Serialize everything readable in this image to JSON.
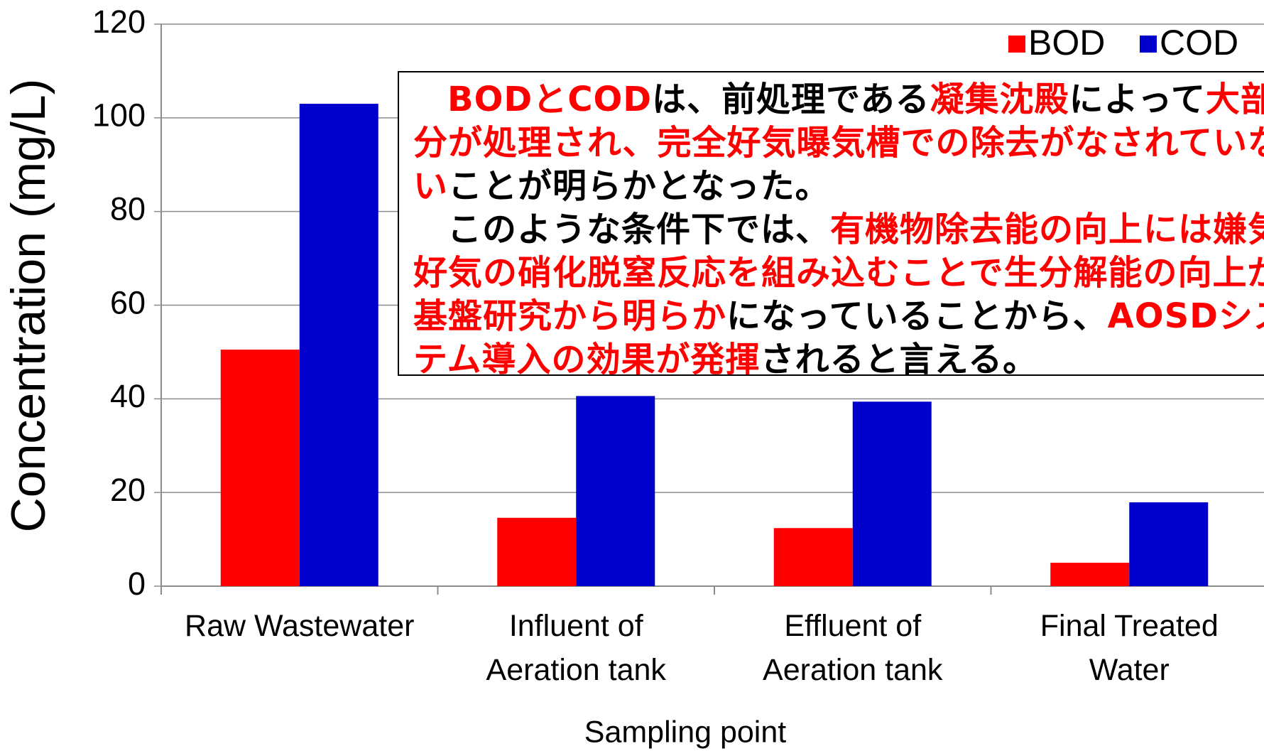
{
  "chart_data": {
    "type": "bar",
    "y_label": "Concentration (mg/L)",
    "x_label": "Sampling point",
    "categories": [
      "Raw Wastewater",
      "Influent of\nAeration tank",
      "Effluent of\nAeration tank",
      "Final Treated\nWater"
    ],
    "series": [
      {
        "name": "BOD",
        "color": "#ff0000",
        "values": [
          50.5,
          14.6,
          12.4,
          5.0
        ]
      },
      {
        "name": "COD",
        "color": "#0000cc",
        "values": [
          103,
          40.6,
          39.4,
          17.9
        ]
      }
    ],
    "ylim": [
      0,
      120
    ],
    "yticks": [
      0,
      20,
      40,
      60,
      80,
      100,
      120
    ],
    "grid": true,
    "legend": "top-right",
    "annotation": [
      [
        {
          "text": "BODとCOD",
          "color": "#ff0000"
        },
        {
          "text": "は、前処理である",
          "color": "#000000"
        },
        {
          "text": "凝集沈殿",
          "color": "#ff0000"
        },
        {
          "text": "によって",
          "color": "#000000"
        },
        {
          "text": "大部分が処理され、完全好気曝気槽での除去がなされていない",
          "color": "#ff0000"
        },
        {
          "text": "ことが明らかとなった。",
          "color": "#000000"
        }
      ],
      [
        {
          "text": "このような条件下では、",
          "color": "#000000"
        },
        {
          "text": "有機物除去能の向上には嫌気好気の硝化脱窒反応を組み込むことで生分解能の向上が基盤研究から明らか",
          "color": "#ff0000"
        },
        {
          "text": "になっていることから、",
          "color": "#000000"
        },
        {
          "text": "AOSDシステム導入の効果が発揮",
          "color": "#ff0000"
        },
        {
          "text": "されると言える。",
          "color": "#000000"
        }
      ]
    ]
  }
}
